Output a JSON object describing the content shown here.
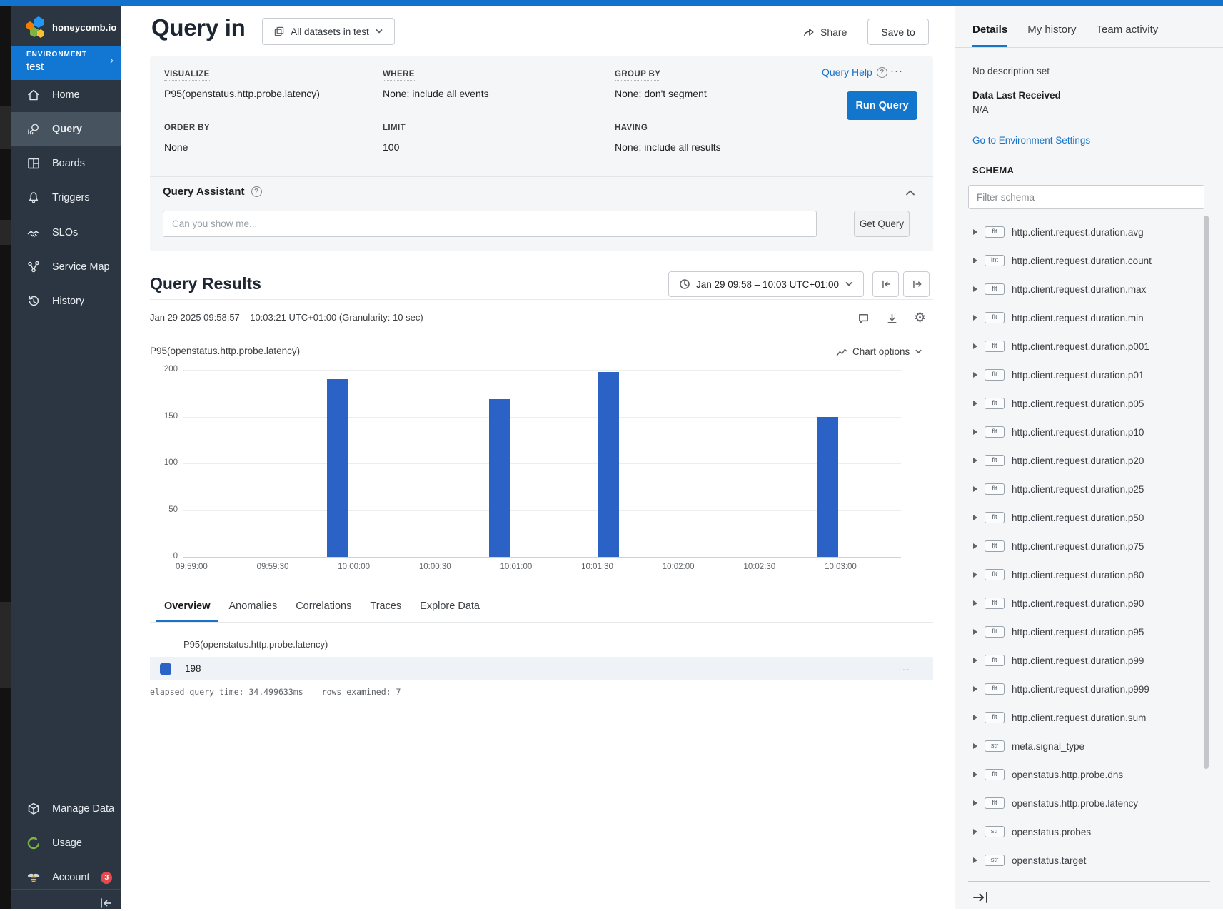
{
  "colors": {
    "accent_blue": "#1176cc",
    "topbar_blue": "#1372cb",
    "env_blue": "#1277d3",
    "sidebar_bg": "#2b3642",
    "link_blue": "#1a73c8",
    "bar_blue": "#2a63c5",
    "badge_red": "#e5484d",
    "usage_green": "#7cb342"
  },
  "icons": {
    "gear": "⚙",
    "ellipsis": "···",
    "chevron_right": "›",
    "question": "?"
  },
  "sidebar": {
    "logo_text": "honeycomb.io",
    "environment_label": "ENVIRONMENT",
    "environment_name": "test",
    "items": [
      {
        "label": "Home"
      },
      {
        "label": "Query"
      },
      {
        "label": "Boards"
      },
      {
        "label": "Triggers"
      },
      {
        "label": "SLOs"
      },
      {
        "label": "Service Map"
      },
      {
        "label": "History"
      }
    ],
    "active_item": "Query",
    "bottom_items": [
      {
        "label": "Manage Data"
      },
      {
        "label": "Usage"
      },
      {
        "label": "Account"
      }
    ],
    "account_badge": "3"
  },
  "header": {
    "title": "Query in",
    "dataset_selector": "All datasets in test",
    "share_label": "Share",
    "save_to_label": "Save to"
  },
  "builder": {
    "query_help": "Query Help",
    "run_query": "Run Query",
    "fields": [
      {
        "label": "VISUALIZE",
        "value": "P95(openstatus.http.probe.latency)"
      },
      {
        "label": "WHERE",
        "value": "None; include all events"
      },
      {
        "label": "GROUP BY",
        "value": "None; don't segment"
      },
      {
        "label": "ORDER BY",
        "value": "None"
      },
      {
        "label": "LIMIT",
        "value": "100"
      },
      {
        "label": "HAVING",
        "value": "None; include all results"
      }
    ]
  },
  "assistant": {
    "title": "Query Assistant",
    "placeholder": "Can you show me...",
    "button": "Get Query"
  },
  "results": {
    "title": "Query Results",
    "time_range_button": "Jan 29 09:58 – 10:03 UTC+01:00",
    "time_detail": "Jan 29 2025 09:58:57 – 10:03:21 UTC+01:00 (Granularity: 10 sec)",
    "series_label": "P95(openstatus.http.probe.latency)",
    "chart_options_label": "Chart options"
  },
  "chart_data": {
    "type": "bar",
    "title": "P95(openstatus.http.probe.latency)",
    "x_domain": [
      "09:58:57",
      "10:03:21"
    ],
    "granularity_sec": 10,
    "ylim": [
      0,
      200
    ],
    "yticks": [
      0,
      50,
      100,
      150,
      200
    ],
    "xticks": [
      "09:59:00",
      "09:59:30",
      "10:00:00",
      "10:00:30",
      "10:01:00",
      "10:01:30",
      "10:02:00",
      "10:02:30",
      "10:03:00"
    ],
    "bars": [
      {
        "time": "09:59:54",
        "value": 190
      },
      {
        "time": "10:00:54",
        "value": 169
      },
      {
        "time": "10:01:34",
        "value": 198
      },
      {
        "time": "10:02:55",
        "value": 150
      }
    ],
    "bar_color": "#2a63c5",
    "grid": true,
    "legend_position": "none"
  },
  "main_tabs": {
    "items": [
      {
        "label": "Overview"
      },
      {
        "label": "Anomalies"
      },
      {
        "label": "Correlations"
      },
      {
        "label": "Traces"
      },
      {
        "label": "Explore Data"
      }
    ],
    "active": "Overview"
  },
  "summary_table": {
    "column_header": "P95(openstatus.http.probe.latency)",
    "rows": [
      {
        "value": "198",
        "swatch_color": "#2a63c5"
      }
    ]
  },
  "query_stats": {
    "elapsed": "elapsed query time: 34.499633ms",
    "rows_examined": "rows examined: 7"
  },
  "details_panel": {
    "tabs": [
      {
        "label": "Details"
      },
      {
        "label": "My history"
      },
      {
        "label": "Team activity"
      }
    ],
    "active_tab": "Details",
    "description": "No description set",
    "data_last_received_label": "Data Last Received",
    "data_last_received_value": "N/A",
    "env_settings_link": "Go to Environment Settings",
    "schema_label": "SCHEMA",
    "filter_placeholder": "Filter schema",
    "schema_fields": [
      {
        "type": "flt",
        "name": "http.client.request.duration.avg"
      },
      {
        "type": "int",
        "name": "http.client.request.duration.count"
      },
      {
        "type": "flt",
        "name": "http.client.request.duration.max"
      },
      {
        "type": "flt",
        "name": "http.client.request.duration.min"
      },
      {
        "type": "flt",
        "name": "http.client.request.duration.p001"
      },
      {
        "type": "flt",
        "name": "http.client.request.duration.p01"
      },
      {
        "type": "flt",
        "name": "http.client.request.duration.p05"
      },
      {
        "type": "flt",
        "name": "http.client.request.duration.p10"
      },
      {
        "type": "flt",
        "name": "http.client.request.duration.p20"
      },
      {
        "type": "flt",
        "name": "http.client.request.duration.p25"
      },
      {
        "type": "flt",
        "name": "http.client.request.duration.p50"
      },
      {
        "type": "flt",
        "name": "http.client.request.duration.p75"
      },
      {
        "type": "flt",
        "name": "http.client.request.duration.p80"
      },
      {
        "type": "flt",
        "name": "http.client.request.duration.p90"
      },
      {
        "type": "flt",
        "name": "http.client.request.duration.p95"
      },
      {
        "type": "flt",
        "name": "http.client.request.duration.p99"
      },
      {
        "type": "flt",
        "name": "http.client.request.duration.p999"
      },
      {
        "type": "flt",
        "name": "http.client.request.duration.sum"
      },
      {
        "type": "str",
        "name": "meta.signal_type"
      },
      {
        "type": "flt",
        "name": "openstatus.http.probe.dns"
      },
      {
        "type": "flt",
        "name": "openstatus.http.probe.latency"
      },
      {
        "type": "str",
        "name": "openstatus.probes"
      },
      {
        "type": "str",
        "name": "openstatus.target"
      }
    ]
  }
}
